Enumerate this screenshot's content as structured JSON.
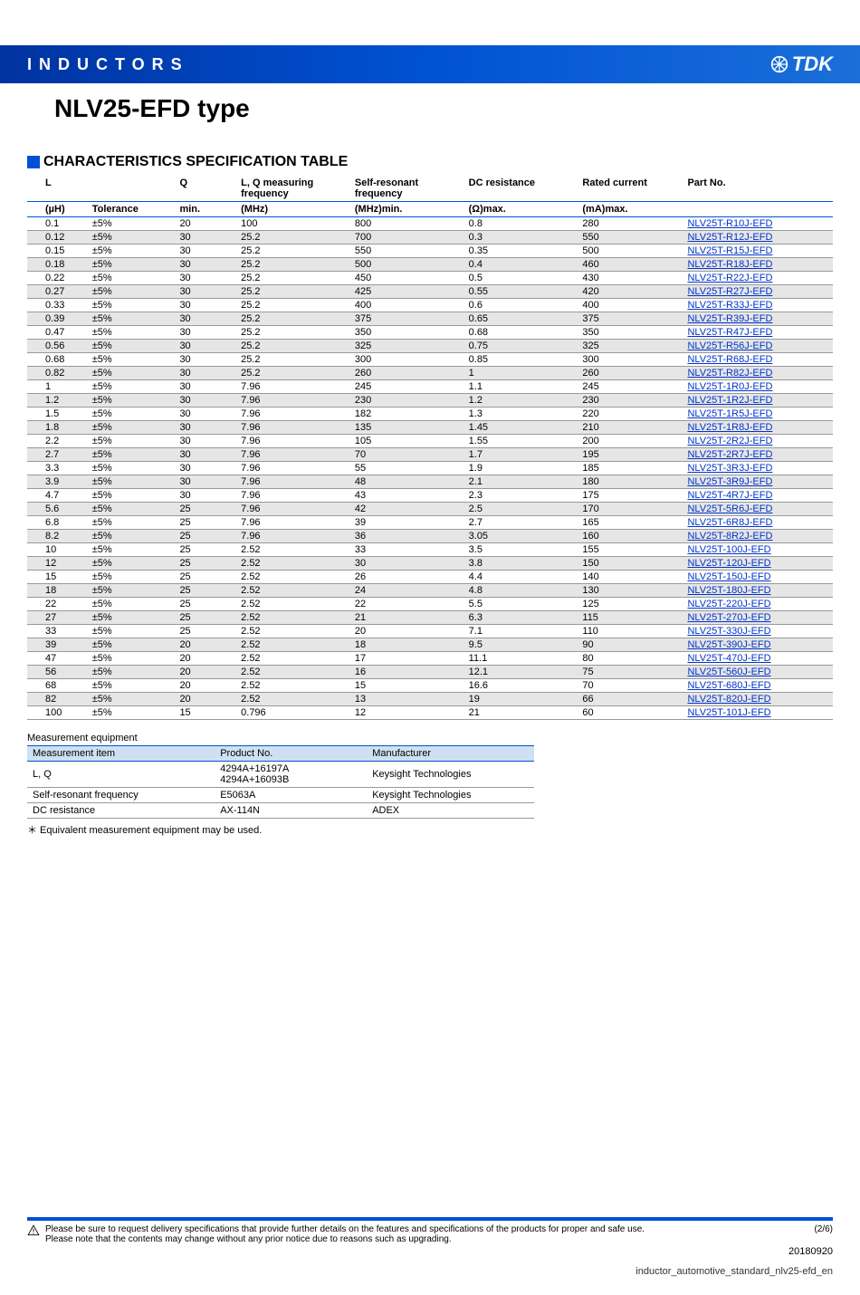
{
  "header": {
    "category": "INDUCTORS",
    "brand": "TDK"
  },
  "title": "NLV25-EFD type",
  "section_title": "CHARACTERISTICS SPECIFICATION TABLE",
  "spec_table": {
    "headers_row1": [
      "L",
      "",
      "Q",
      "L, Q measuring frequency",
      "Self-resonant frequency",
      "DC resistance",
      "Rated current",
      "Part No."
    ],
    "headers_row2": [
      "(µH)",
      "Tolerance",
      "min.",
      "(MHz)",
      "(MHz)min.",
      "(Ω)max.",
      "(mA)max.",
      ""
    ],
    "col_widths": [
      "7%",
      "10%",
      "7%",
      "13%",
      "13%",
      "13%",
      "12%",
      "17%"
    ],
    "shade_color": "#e6e6e6",
    "border_color": "#0052d4",
    "link_color": "#0033cc",
    "rows": [
      [
        "0.1",
        "±5%",
        "20",
        "100",
        "800",
        "0.8",
        "280",
        "NLV25T-R10J-EFD",
        false
      ],
      [
        "0.12",
        "±5%",
        "30",
        "25.2",
        "700",
        "0.3",
        "550",
        "NLV25T-R12J-EFD",
        true
      ],
      [
        "0.15",
        "±5%",
        "30",
        "25.2",
        "550",
        "0.35",
        "500",
        "NLV25T-R15J-EFD",
        false
      ],
      [
        "0.18",
        "±5%",
        "30",
        "25.2",
        "500",
        "0.4",
        "460",
        "NLV25T-R18J-EFD",
        true
      ],
      [
        "0.22",
        "±5%",
        "30",
        "25.2",
        "450",
        "0.5",
        "430",
        "NLV25T-R22J-EFD",
        false
      ],
      [
        "0.27",
        "±5%",
        "30",
        "25.2",
        "425",
        "0.55",
        "420",
        "NLV25T-R27J-EFD",
        true
      ],
      [
        "0.33",
        "±5%",
        "30",
        "25.2",
        "400",
        "0.6",
        "400",
        "NLV25T-R33J-EFD",
        false
      ],
      [
        "0.39",
        "±5%",
        "30",
        "25.2",
        "375",
        "0.65",
        "375",
        "NLV25T-R39J-EFD",
        true
      ],
      [
        "0.47",
        "±5%",
        "30",
        "25.2",
        "350",
        "0.68",
        "350",
        "NLV25T-R47J-EFD",
        false
      ],
      [
        "0.56",
        "±5%",
        "30",
        "25.2",
        "325",
        "0.75",
        "325",
        "NLV25T-R56J-EFD",
        true
      ],
      [
        "0.68",
        "±5%",
        "30",
        "25.2",
        "300",
        "0.85",
        "300",
        "NLV25T-R68J-EFD",
        false
      ],
      [
        "0.82",
        "±5%",
        "30",
        "25.2",
        "260",
        "1",
        "260",
        "NLV25T-R82J-EFD",
        true
      ],
      [
        "1",
        "±5%",
        "30",
        "7.96",
        "245",
        "1.1",
        "245",
        "NLV25T-1R0J-EFD",
        false
      ],
      [
        "1.2",
        "±5%",
        "30",
        "7.96",
        "230",
        "1.2",
        "230",
        "NLV25T-1R2J-EFD",
        true
      ],
      [
        "1.5",
        "±5%",
        "30",
        "7.96",
        "182",
        "1.3",
        "220",
        "NLV25T-1R5J-EFD",
        false
      ],
      [
        "1.8",
        "±5%",
        "30",
        "7.96",
        "135",
        "1.45",
        "210",
        "NLV25T-1R8J-EFD",
        true
      ],
      [
        "2.2",
        "±5%",
        "30",
        "7.96",
        "105",
        "1.55",
        "200",
        "NLV25T-2R2J-EFD",
        false
      ],
      [
        "2.7",
        "±5%",
        "30",
        "7.96",
        "70",
        "1.7",
        "195",
        "NLV25T-2R7J-EFD",
        true
      ],
      [
        "3.3",
        "±5%",
        "30",
        "7.96",
        "55",
        "1.9",
        "185",
        "NLV25T-3R3J-EFD",
        false
      ],
      [
        "3.9",
        "±5%",
        "30",
        "7.96",
        "48",
        "2.1",
        "180",
        "NLV25T-3R9J-EFD",
        true
      ],
      [
        "4.7",
        "±5%",
        "30",
        "7.96",
        "43",
        "2.3",
        "175",
        "NLV25T-4R7J-EFD",
        false
      ],
      [
        "5.6",
        "±5%",
        "25",
        "7.96",
        "42",
        "2.5",
        "170",
        "NLV25T-5R6J-EFD",
        true
      ],
      [
        "6.8",
        "±5%",
        "25",
        "7.96",
        "39",
        "2.7",
        "165",
        "NLV25T-6R8J-EFD",
        false
      ],
      [
        "8.2",
        "±5%",
        "25",
        "7.96",
        "36",
        "3.05",
        "160",
        "NLV25T-8R2J-EFD",
        true
      ],
      [
        "10",
        "±5%",
        "25",
        "2.52",
        "33",
        "3.5",
        "155",
        "NLV25T-100J-EFD",
        false
      ],
      [
        "12",
        "±5%",
        "25",
        "2.52",
        "30",
        "3.8",
        "150",
        "NLV25T-120J-EFD",
        true
      ],
      [
        "15",
        "±5%",
        "25",
        "2.52",
        "26",
        "4.4",
        "140",
        "NLV25T-150J-EFD",
        false
      ],
      [
        "18",
        "±5%",
        "25",
        "2.52",
        "24",
        "4.8",
        "130",
        "NLV25T-180J-EFD",
        true
      ],
      [
        "22",
        "±5%",
        "25",
        "2.52",
        "22",
        "5.5",
        "125",
        "NLV25T-220J-EFD",
        false
      ],
      [
        "27",
        "±5%",
        "25",
        "2.52",
        "21",
        "6.3",
        "115",
        "NLV25T-270J-EFD",
        true
      ],
      [
        "33",
        "±5%",
        "25",
        "2.52",
        "20",
        "7.1",
        "110",
        "NLV25T-330J-EFD",
        false
      ],
      [
        "39",
        "±5%",
        "20",
        "2.52",
        "18",
        "9.5",
        "90",
        "NLV25T-390J-EFD",
        true
      ],
      [
        "47",
        "±5%",
        "20",
        "2.52",
        "17",
        "11.1",
        "80",
        "NLV25T-470J-EFD",
        false
      ],
      [
        "56",
        "±5%",
        "20",
        "2.52",
        "16",
        "12.1",
        "75",
        "NLV25T-560J-EFD",
        true
      ],
      [
        "68",
        "±5%",
        "20",
        "2.52",
        "15",
        "16.6",
        "70",
        "NLV25T-680J-EFD",
        false
      ],
      [
        "82",
        "±5%",
        "20",
        "2.52",
        "13",
        "19",
        "66",
        "NLV25T-820J-EFD",
        true
      ],
      [
        "100",
        "±5%",
        "15",
        "0.796",
        "12",
        "21",
        "60",
        "NLV25T-101J-EFD",
        false
      ]
    ]
  },
  "meas": {
    "title": "Measurement equipment",
    "headers": [
      "Measurement item",
      "Product No.",
      "Manufacturer"
    ],
    "header_bg": "#cfe0f2",
    "rows": [
      [
        "L, Q",
        "4294A+16197A\n4294A+16093B",
        "Keysight Technologies"
      ],
      [
        "Self-resonant frequency",
        "E5063A",
        "Keysight Technologies"
      ],
      [
        "DC resistance",
        "AX-114N",
        "ADEX"
      ]
    ],
    "footnote": "＊ Equivalent measurement equipment may be used."
  },
  "footer": {
    "warn1": "Please be sure to request delivery specifications that provide further details on the features and specifications of the products for proper and safe use.",
    "warn2": "Please note that the contents may change without any prior notice due to reasons such as upgrading.",
    "page": "(2/6)",
    "date": "20180920",
    "docref": "inductor_automotive_standard_nlv25-efd_en"
  }
}
